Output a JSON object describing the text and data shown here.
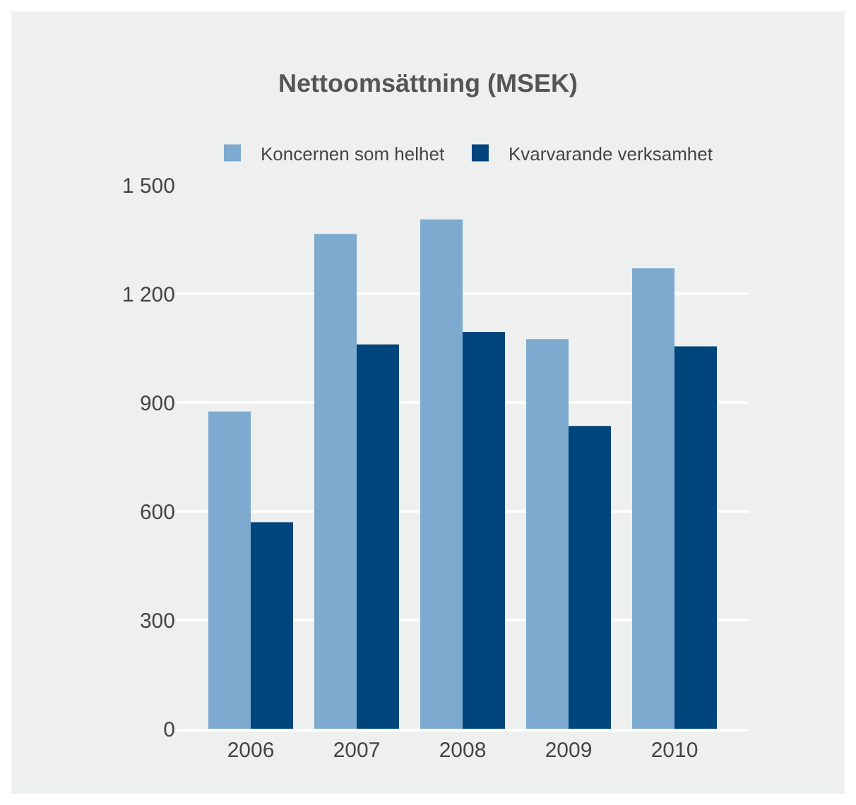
{
  "chart_data": {
    "type": "bar",
    "title": "Nettoomsättning (MSEK)",
    "categories": [
      "2006",
      "2007",
      "2008",
      "2009",
      "2010"
    ],
    "series": [
      {
        "name": "Koncernen som helhet",
        "color": "#7eaacf",
        "values": [
          875,
          1365,
          1405,
          1075,
          1270
        ]
      },
      {
        "name": "Kvarvarande verksamhet",
        "color": "#00457c",
        "values": [
          570,
          1060,
          1095,
          835,
          1055
        ]
      }
    ],
    "ylim": [
      0,
      1500
    ],
    "yticks": [
      0,
      {
        "value": 300,
        "label": "300"
      },
      {
        "value": 600,
        "label": "600"
      },
      {
        "value": 900,
        "label": "900"
      },
      {
        "value": 1200,
        "label": "1 200"
      },
      {
        "value": 1500,
        "label": "1 500"
      }
    ],
    "grid": "y",
    "legend": "top"
  }
}
